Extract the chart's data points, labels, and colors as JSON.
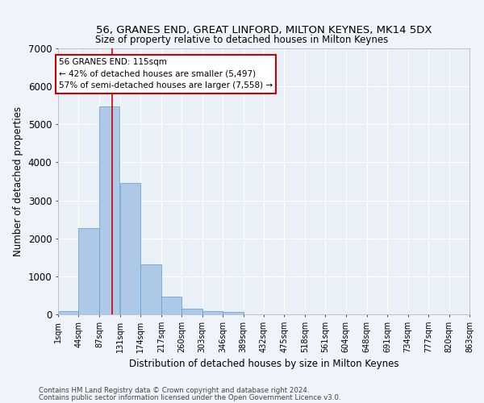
{
  "title": "56, GRANES END, GREAT LINFORD, MILTON KEYNES, MK14 5DX",
  "subtitle": "Size of property relative to detached houses in Milton Keynes",
  "xlabel": "Distribution of detached houses by size in Milton Keynes",
  "ylabel": "Number of detached properties",
  "footer1": "Contains HM Land Registry data © Crown copyright and database right 2024.",
  "footer2": "Contains public sector information licensed under the Open Government Licence v3.0.",
  "bar_values": [
    75,
    2270,
    5470,
    3450,
    1310,
    470,
    155,
    80,
    60,
    0,
    0,
    0,
    0,
    0,
    0,
    0,
    0,
    0,
    0,
    0
  ],
  "bin_edges": [
    1,
    44,
    87,
    131,
    174,
    217,
    260,
    303,
    346,
    389,
    432,
    475,
    518,
    561,
    604,
    648,
    691,
    734,
    777,
    820,
    863
  ],
  "tick_labels": [
    "1sqm",
    "44sqm",
    "87sqm",
    "131sqm",
    "174sqm",
    "217sqm",
    "260sqm",
    "303sqm",
    "346sqm",
    "389sqm",
    "432sqm",
    "475sqm",
    "518sqm",
    "561sqm",
    "604sqm",
    "648sqm",
    "691sqm",
    "734sqm",
    "777sqm",
    "820sqm",
    "863sqm"
  ],
  "bar_color": "#aec8e8",
  "bar_edge_color": "#5b9bd5",
  "bg_color": "#eaf0f8",
  "grid_color": "#ffffff",
  "property_size": 115,
  "property_label": "56 GRANES END: 115sqm",
  "annotation_line1": "← 42% of detached houses are smaller (5,497)",
  "annotation_line2": "57% of semi-detached houses are larger (7,558) →",
  "annotation_box_color": "#ffffff",
  "annotation_border_color": "#cc0000",
  "vline_color": "#cc0000",
  "ylim": [
    0,
    7000
  ],
  "yticks": [
    0,
    1000,
    2000,
    3000,
    4000,
    5000,
    6000,
    7000
  ],
  "fig_width": 6.0,
  "fig_height": 5.0,
  "fig_dpi": 100
}
